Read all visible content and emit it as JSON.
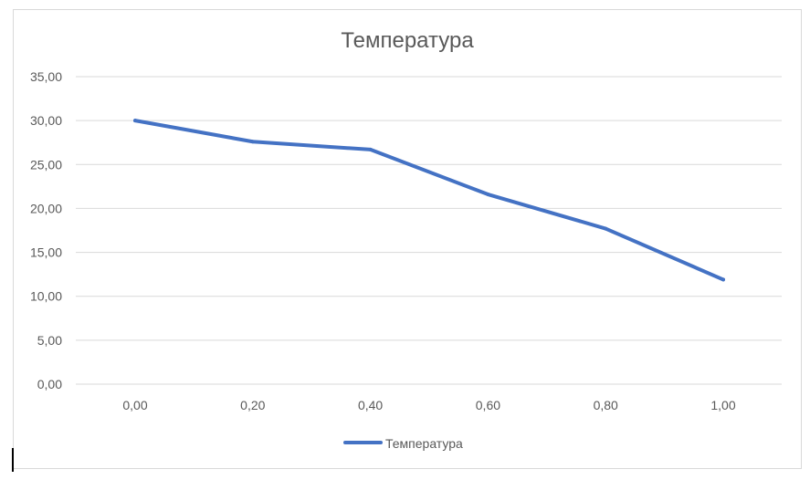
{
  "chart_data": {
    "type": "line",
    "title": "Температура",
    "x": [
      "0,00",
      "0,20",
      "0,40",
      "0,60",
      "0,80",
      "1,00"
    ],
    "x_values": [
      0.0,
      0.2,
      0.4,
      0.6,
      0.8,
      1.0
    ],
    "series": [
      {
        "name": "Температура",
        "values": [
          30.0,
          27.6,
          26.7,
          21.6,
          17.7,
          11.9
        ],
        "color": "#4472c4"
      }
    ],
    "y_ticks": [
      0,
      5,
      10,
      15,
      20,
      25,
      30,
      35
    ],
    "y_tick_labels": [
      "0,00",
      "5,00",
      "10,00",
      "15,00",
      "20,00",
      "25,00",
      "30,00",
      "35,00"
    ],
    "ylim": [
      0,
      35
    ],
    "grid": true,
    "legend": "bottom"
  }
}
